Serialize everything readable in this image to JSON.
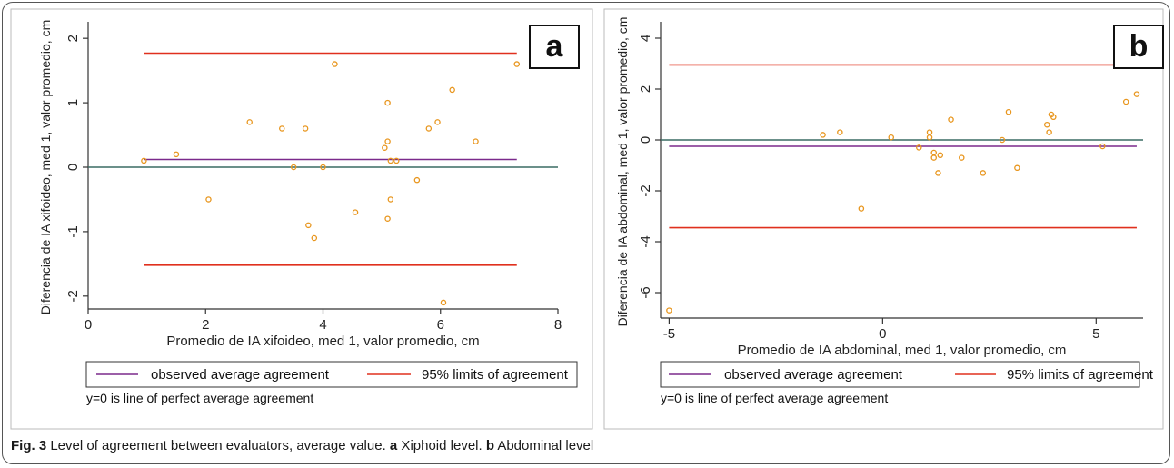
{
  "figure": {
    "caption_label": "Fig. 3",
    "caption_text": " Level of agreement between evaluators, average value. ",
    "caption_a_letter": "a",
    "caption_a_text": " Xiphoid level. ",
    "caption_b_letter": "b",
    "caption_b_text": " Abdominal level"
  },
  "colors": {
    "points": "#E8961E",
    "observed_line": "#7B2A8C",
    "limits_line": "#E0301E",
    "zero_line": "#3A6B64",
    "axis": "#333333"
  },
  "chart_data": [
    {
      "type": "scatter",
      "panel_label": "a",
      "title": "",
      "xlabel": "Promedio de IA xifoideo, med 1, valor promedio, cm",
      "ylabel": "Diferencia de IA xifoideo, med 1, valor promedio, cm",
      "xlim": [
        0,
        8
      ],
      "ylim": [
        -2.2,
        2.2
      ],
      "xticks": [
        0,
        2,
        4,
        6,
        8
      ],
      "yticks": [
        -2,
        -1,
        0,
        1,
        2
      ],
      "grid": false,
      "legend_items": [
        "observed average agreement",
        "95% limits of agreement"
      ],
      "note": "y=0 is line of perfect average agreement",
      "mean_line": 0.12,
      "upper_limit": 1.77,
      "lower_limit": -1.52,
      "zero_line": 0,
      "line_x_range": [
        0.95,
        7.3
      ],
      "points": [
        [
          0.95,
          0.1
        ],
        [
          1.5,
          0.2
        ],
        [
          2.05,
          -0.5
        ],
        [
          2.75,
          0.7
        ],
        [
          3.3,
          0.6
        ],
        [
          3.5,
          0.0
        ],
        [
          3.7,
          0.6
        ],
        [
          3.75,
          -0.9
        ],
        [
          3.85,
          -1.1
        ],
        [
          4.0,
          0.0
        ],
        [
          4.2,
          1.6
        ],
        [
          4.55,
          -0.7
        ],
        [
          5.05,
          0.3
        ],
        [
          5.1,
          1.0
        ],
        [
          5.1,
          0.4
        ],
        [
          5.1,
          -0.8
        ],
        [
          5.15,
          0.1
        ],
        [
          5.15,
          -0.5
        ],
        [
          5.25,
          0.1
        ],
        [
          5.6,
          -0.2
        ],
        [
          5.8,
          0.6
        ],
        [
          5.95,
          0.7
        ],
        [
          6.05,
          -2.1
        ],
        [
          6.2,
          1.2
        ],
        [
          6.6,
          0.4
        ],
        [
          7.3,
          1.6
        ]
      ]
    },
    {
      "type": "scatter",
      "panel_label": "b",
      "title": "",
      "xlabel": "Promedio de IA abdominal, med 1, valor promedio, cm",
      "ylabel": "Diferencia de IA abdominal, med 1, valor promedio, cm",
      "xlim": [
        -5.2,
        6.1
      ],
      "ylim": [
        -7.0,
        4.5
      ],
      "xticks": [
        -5,
        0,
        5
      ],
      "yticks": [
        -6,
        -4,
        -2,
        0,
        2,
        4
      ],
      "grid": false,
      "legend_items": [
        "observed average agreement",
        "95% limits of agreement"
      ],
      "note": "y=0 is line of perfect average agreement",
      "mean_line": -0.25,
      "upper_limit": 2.95,
      "lower_limit": -3.45,
      "zero_line": 0,
      "line_x_range": [
        -5.0,
        5.95
      ],
      "points": [
        [
          -5.0,
          -6.7
        ],
        [
          -1.4,
          0.2
        ],
        [
          -1.0,
          0.3
        ],
        [
          -0.5,
          -2.7
        ],
        [
          0.2,
          0.1
        ],
        [
          0.85,
          -0.3
        ],
        [
          1.1,
          0.3
        ],
        [
          1.1,
          0.1
        ],
        [
          1.2,
          -0.5
        ],
        [
          1.2,
          -0.7
        ],
        [
          1.35,
          -0.6
        ],
        [
          1.3,
          -1.3
        ],
        [
          1.6,
          0.8
        ],
        [
          1.85,
          -0.7
        ],
        [
          2.35,
          -1.3
        ],
        [
          2.8,
          0.0
        ],
        [
          2.95,
          1.1
        ],
        [
          3.15,
          -1.1
        ],
        [
          3.85,
          0.6
        ],
        [
          3.9,
          0.3
        ],
        [
          3.95,
          1.0
        ],
        [
          4.0,
          0.9
        ],
        [
          5.15,
          -0.25
        ],
        [
          5.7,
          1.5
        ],
        [
          5.95,
          1.8
        ]
      ]
    }
  ]
}
